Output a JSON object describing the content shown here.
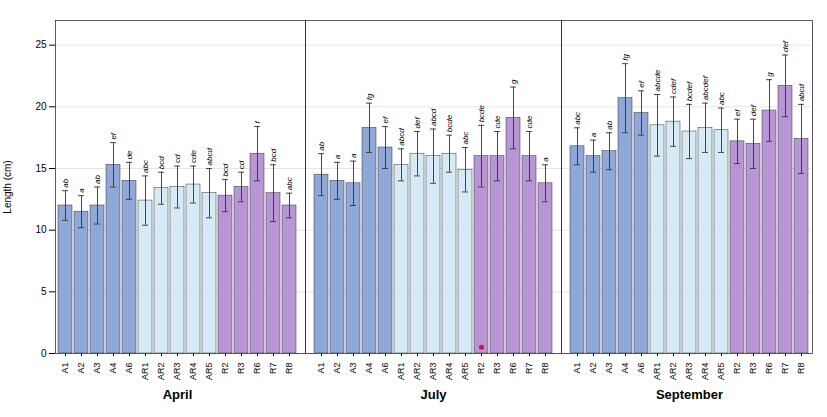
{
  "chart_data": {
    "type": "bar",
    "ylabel": "Length (cm)",
    "ylim": [
      0,
      27
    ],
    "yticks": [
      0,
      5,
      10,
      15,
      20,
      25
    ],
    "grid": true,
    "groups": [
      {
        "name": "April",
        "categories": [
          "A1",
          "A2",
          "A3",
          "A4",
          "A6",
          "AR1",
          "AR2",
          "AR3",
          "AR4",
          "AR5",
          "R2",
          "R3",
          "R6",
          "R7",
          "R8"
        ],
        "values": [
          12.0,
          11.5,
          12.0,
          15.3,
          14.0,
          12.4,
          13.4,
          13.5,
          13.7,
          13.0,
          12.8,
          13.5,
          16.2,
          13.0,
          12.0
        ],
        "errors": [
          1.2,
          1.3,
          1.5,
          1.8,
          1.5,
          2.0,
          1.3,
          1.7,
          1.5,
          2.0,
          1.3,
          1.2,
          2.2,
          2.3,
          1.0
        ],
        "colors": [
          "#8FA8D8",
          "#8FA8D8",
          "#8FA8D8",
          "#8FA8D8",
          "#8FA8D8",
          "#D5EAF5",
          "#D5EAF5",
          "#D5EAF5",
          "#D5EAF5",
          "#D5EAF5",
          "#B896D6",
          "#B896D6",
          "#B896D6",
          "#B896D6",
          "#B896D6"
        ],
        "annotations": [
          "ab",
          "a",
          "ab",
          "ef",
          "de",
          "abc",
          "bcd",
          "cd",
          "cde",
          "abcd",
          "bcd",
          "cd",
          "f",
          "bcd",
          "abc"
        ]
      },
      {
        "name": "July",
        "categories": [
          "A1",
          "A2",
          "A3",
          "A4",
          "A6",
          "AR1",
          "AR2",
          "AR3",
          "AR4",
          "AR5",
          "R2",
          "R3",
          "R6",
          "R7",
          "R8"
        ],
        "values": [
          14.5,
          14.0,
          13.8,
          18.3,
          16.7,
          15.3,
          16.2,
          16.0,
          16.2,
          14.9,
          16.0,
          16.0,
          19.1,
          16.0,
          13.8
        ],
        "errors": [
          1.7,
          1.5,
          1.8,
          2.0,
          1.7,
          1.3,
          1.8,
          2.2,
          1.5,
          1.8,
          2.5,
          2.0,
          2.5,
          2.0,
          1.5
        ],
        "colors": [
          "#8FA8D8",
          "#8FA8D8",
          "#8FA8D8",
          "#8FA8D8",
          "#8FA8D8",
          "#D5EAF5",
          "#D5EAF5",
          "#D5EAF5",
          "#D5EAF5",
          "#D5EAF5",
          "#B896D6",
          "#B896D6",
          "#B896D6",
          "#B896D6",
          "#B896D6"
        ],
        "annotations": [
          "ab",
          "a",
          "a",
          "fg",
          "ef",
          "abcd",
          "def",
          "abcd",
          "bcde",
          "abc",
          "bcde",
          "cde",
          "g",
          "cde",
          "a"
        ]
      },
      {
        "name": "September",
        "categories": [
          "A1",
          "A2",
          "A3",
          "A4",
          "A6",
          "AR1",
          "AR2",
          "AR3",
          "AR4",
          "AR5",
          "R2",
          "R3",
          "R6",
          "R7",
          "R8"
        ],
        "values": [
          16.8,
          16.0,
          16.4,
          20.7,
          19.5,
          18.5,
          18.8,
          18.0,
          18.3,
          18.1,
          17.2,
          17.0,
          19.7,
          21.7,
          17.4
        ],
        "errors": [
          1.5,
          1.3,
          1.5,
          2.8,
          1.8,
          2.5,
          2.0,
          2.2,
          2.0,
          1.8,
          1.8,
          2.0,
          2.5,
          2.5,
          2.8
        ],
        "colors": [
          "#8FA8D8",
          "#8FA8D8",
          "#8FA8D8",
          "#8FA8D8",
          "#8FA8D8",
          "#D5EAF5",
          "#D5EAF5",
          "#D5EAF5",
          "#D5EAF5",
          "#D5EAF5",
          "#B896D6",
          "#B896D6",
          "#B896D6",
          "#B896D6",
          "#B896D6"
        ],
        "annotations": [
          "abc",
          "a",
          "ab",
          "fg",
          "ef",
          "abcde",
          "cdef",
          "bcdef",
          "abcdef",
          "abc",
          "ef",
          "def",
          "g",
          "def",
          "abcd"
        ]
      }
    ],
    "points": [
      {
        "group": "July",
        "category": "R2",
        "value": 0.5,
        "color": "#CC1155",
        "marker": "circle"
      }
    ]
  }
}
